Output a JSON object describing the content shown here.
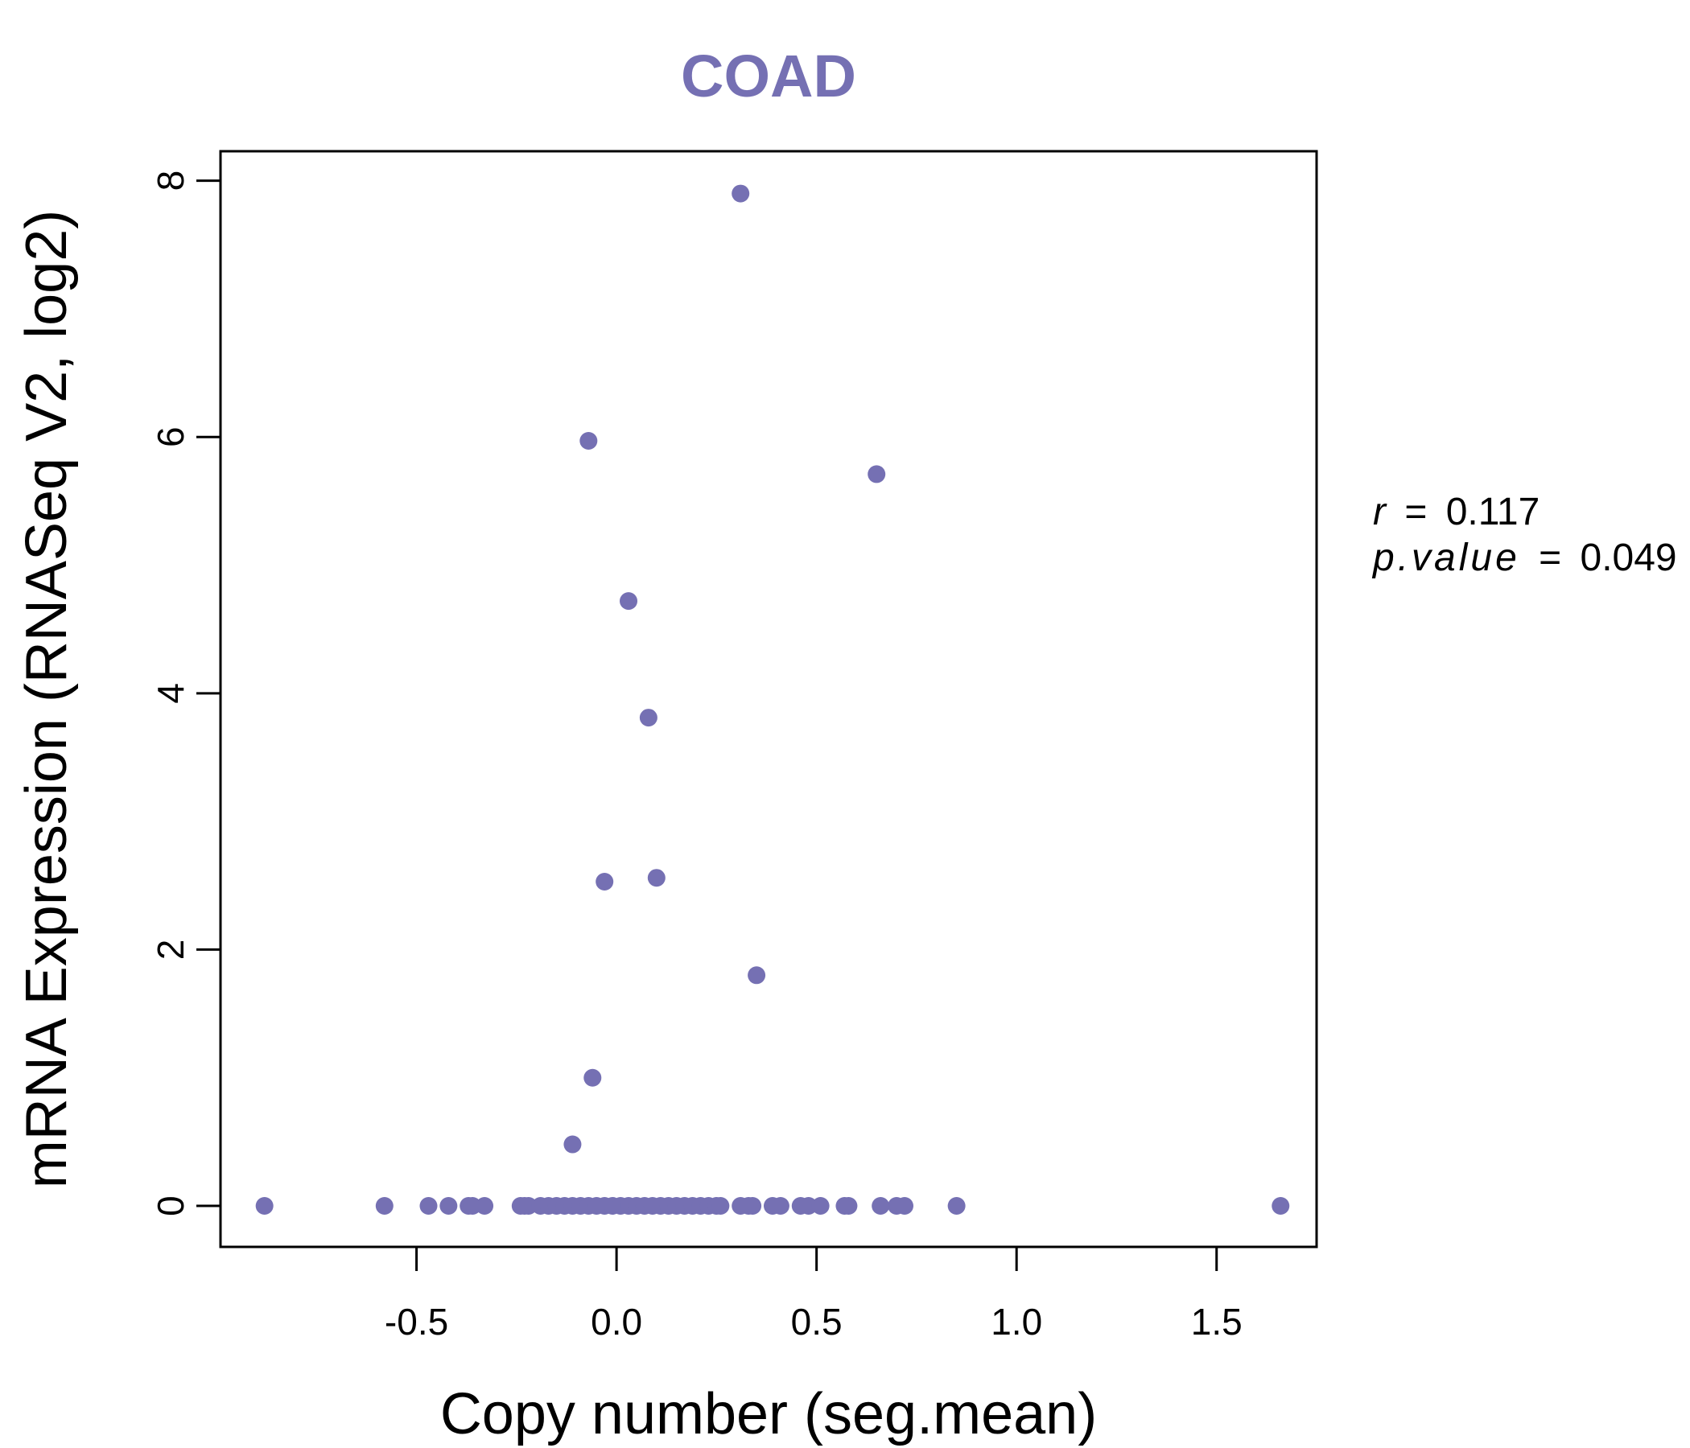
{
  "chart_data": {
    "type": "scatter",
    "title": "COAD",
    "xlabel": "Copy number (seg.mean)",
    "ylabel": "mRNA Expression (RNASeq V2, log2)",
    "xlim": [
      -0.99,
      1.75
    ],
    "ylim": [
      -0.32,
      8.23
    ],
    "xticks": [
      -0.5,
      0.0,
      0.5,
      1.0,
      1.5
    ],
    "xtick_labels": [
      "-0.5",
      "0.0",
      "0.5",
      "1.0",
      "1.5"
    ],
    "yticks": [
      0,
      2,
      4,
      6,
      8
    ],
    "ytick_labels": [
      "0",
      "2",
      "4",
      "6",
      "8"
    ],
    "grid": false,
    "legend": "none",
    "point_color": "#7570b3",
    "title_color": "#7570b3",
    "stats": {
      "r_label": "r",
      "r_value": "0.117",
      "p_label": "p.value",
      "p_value": "0.049",
      "equals": "="
    },
    "points": [
      {
        "x": 0.31,
        "y": 7.9
      },
      {
        "x": -0.07,
        "y": 5.97
      },
      {
        "x": 0.65,
        "y": 5.71
      },
      {
        "x": 0.03,
        "y": 4.72
      },
      {
        "x": 0.08,
        "y": 3.81
      },
      {
        "x": 0.1,
        "y": 2.56
      },
      {
        "x": -0.03,
        "y": 2.53
      },
      {
        "x": 0.35,
        "y": 1.8
      },
      {
        "x": -0.06,
        "y": 1.0
      },
      {
        "x": -0.11,
        "y": 0.48
      },
      {
        "x": -0.88,
        "y": 0
      },
      {
        "x": -0.58,
        "y": 0
      },
      {
        "x": -0.47,
        "y": 0
      },
      {
        "x": -0.42,
        "y": 0
      },
      {
        "x": -0.37,
        "y": 0
      },
      {
        "x": -0.36,
        "y": 0
      },
      {
        "x": -0.33,
        "y": 0
      },
      {
        "x": -0.24,
        "y": 0
      },
      {
        "x": -0.23,
        "y": 0
      },
      {
        "x": -0.22,
        "y": 0
      },
      {
        "x": -0.19,
        "y": 0
      },
      {
        "x": -0.17,
        "y": 0
      },
      {
        "x": -0.15,
        "y": 0
      },
      {
        "x": -0.13,
        "y": 0
      },
      {
        "x": -0.11,
        "y": 0
      },
      {
        "x": -0.09,
        "y": 0
      },
      {
        "x": -0.07,
        "y": 0
      },
      {
        "x": -0.05,
        "y": 0
      },
      {
        "x": -0.03,
        "y": 0
      },
      {
        "x": -0.01,
        "y": 0
      },
      {
        "x": 0.01,
        "y": 0
      },
      {
        "x": 0.03,
        "y": 0
      },
      {
        "x": 0.05,
        "y": 0
      },
      {
        "x": 0.07,
        "y": 0
      },
      {
        "x": 0.09,
        "y": 0
      },
      {
        "x": 0.11,
        "y": 0
      },
      {
        "x": 0.13,
        "y": 0
      },
      {
        "x": 0.15,
        "y": 0
      },
      {
        "x": 0.17,
        "y": 0
      },
      {
        "x": 0.19,
        "y": 0
      },
      {
        "x": 0.21,
        "y": 0
      },
      {
        "x": 0.23,
        "y": 0
      },
      {
        "x": 0.25,
        "y": 0
      },
      {
        "x": 0.26,
        "y": 0
      },
      {
        "x": 0.31,
        "y": 0
      },
      {
        "x": 0.33,
        "y": 0
      },
      {
        "x": 0.34,
        "y": 0
      },
      {
        "x": 0.39,
        "y": 0
      },
      {
        "x": 0.41,
        "y": 0
      },
      {
        "x": 0.46,
        "y": 0
      },
      {
        "x": 0.48,
        "y": 0
      },
      {
        "x": 0.51,
        "y": 0
      },
      {
        "x": 0.57,
        "y": 0
      },
      {
        "x": 0.58,
        "y": 0
      },
      {
        "x": 0.66,
        "y": 0
      },
      {
        "x": 0.7,
        "y": 0
      },
      {
        "x": 0.72,
        "y": 0
      },
      {
        "x": 0.85,
        "y": 0
      },
      {
        "x": 1.66,
        "y": 0
      }
    ]
  }
}
